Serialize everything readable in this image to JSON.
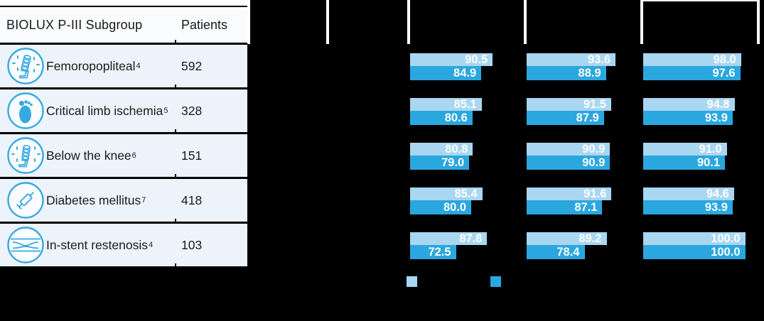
{
  "colors": {
    "bar_light": "#a9d6f1",
    "bar_dark": "#2aa7df",
    "row_bg": "#edf3fa",
    "icon_blue": "#36a9e1",
    "canvas_bg": "#000000"
  },
  "table": {
    "header": {
      "subgroup_label": "BIOLUX P-III Subgroup",
      "patients_label": "Patients"
    },
    "rows": [
      {
        "icon": "leg-stent-icon",
        "label": "Femoropopliteal",
        "footnote": "4",
        "patients": "592"
      },
      {
        "icon": "foot-icon",
        "label": "Critical limb ischemia",
        "footnote": "5",
        "patients": "328"
      },
      {
        "icon": "below-knee-stent-icon",
        "label": "Below the knee",
        "footnote": "6",
        "patients": "151"
      },
      {
        "icon": "syringe-icon",
        "label": "Diabetes mellitus",
        "footnote": "7",
        "patients": "418"
      },
      {
        "icon": "vessel-restenosis-icon",
        "label": "In-stent restenosis",
        "footnote": "4",
        "patients": "103"
      }
    ]
  },
  "chart_data": {
    "type": "bar",
    "orientation": "horizontal",
    "value_axis": {
      "min": 50,
      "max": 100
    },
    "grid": false,
    "legend_position": "bottom",
    "categories": [
      "Femoropopliteal",
      "Critical limb ischemia",
      "Below the knee",
      "Diabetes mellitus",
      "In-stent restenosis"
    ],
    "patients": [
      592,
      328,
      151,
      418,
      103
    ],
    "panels": [
      {
        "series": [
          {
            "name": "light-blue",
            "color": "#a9d6f1",
            "values": [
              90.5,
              85.1,
              80.8,
              85.4,
              87.8
            ]
          },
          {
            "name": "dark-blue",
            "color": "#2aa7df",
            "values": [
              84.9,
              80.6,
              79.0,
              80.0,
              72.5
            ]
          }
        ]
      },
      {
        "series": [
          {
            "name": "light-blue",
            "color": "#a9d6f1",
            "values": [
              93.6,
              91.5,
              90.9,
              91.6,
              89.2
            ]
          },
          {
            "name": "dark-blue",
            "color": "#2aa7df",
            "values": [
              88.9,
              87.9,
              90.9,
              87.1,
              78.4
            ]
          }
        ]
      },
      {
        "series": [
          {
            "name": "light-blue",
            "color": "#a9d6f1",
            "values": [
              98.0,
              94.8,
              91.0,
              94.6,
              100.0
            ]
          },
          {
            "name": "dark-blue",
            "color": "#2aa7df",
            "values": [
              97.6,
              93.9,
              90.1,
              93.9,
              100.0
            ]
          }
        ]
      }
    ],
    "value_label_format": "one_decimal"
  },
  "legend": {
    "swatches": [
      {
        "name": "legend-swatch-light",
        "color": "#a9d6f1"
      },
      {
        "name": "legend-swatch-dark",
        "color": "#2aa7df"
      }
    ]
  }
}
